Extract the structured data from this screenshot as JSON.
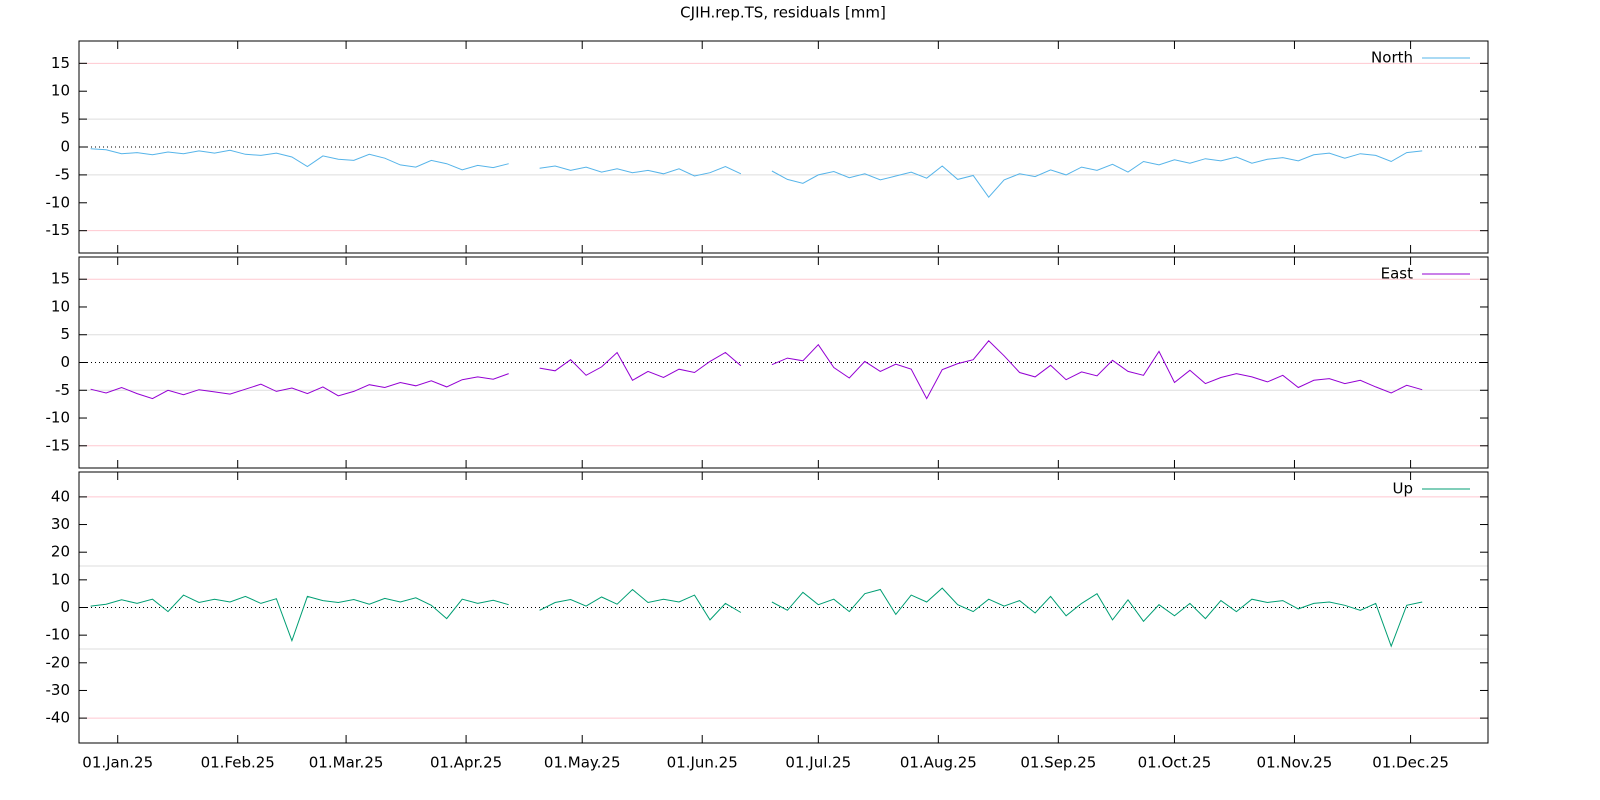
{
  "chart_data": {
    "type": "line",
    "title": "CJIH.rep.TS, residuals [mm]",
    "x": [
      "2024-12-25",
      "2024-12-29",
      "2025-01-02",
      "2025-01-06",
      "2025-01-10",
      "2025-01-14",
      "2025-01-18",
      "2025-01-22",
      "2025-01-26",
      "2025-01-30",
      "2025-02-03",
      "2025-02-07",
      "2025-02-11",
      "2025-02-15",
      "2025-02-19",
      "2025-02-23",
      "2025-02-27",
      "2025-03-03",
      "2025-03-07",
      "2025-03-11",
      "2025-03-15",
      "2025-03-19",
      "2025-03-23",
      "2025-03-27",
      "2025-03-31",
      "2025-04-04",
      "2025-04-08",
      "2025-04-12",
      "2025-04-16",
      "2025-04-20",
      "2025-04-24",
      "2025-04-28",
      "2025-05-02",
      "2025-05-06",
      "2025-05-10",
      "2025-05-14",
      "2025-05-18",
      "2025-05-22",
      "2025-05-26",
      "2025-05-30",
      "2025-06-03",
      "2025-06-07",
      "2025-06-11",
      "2025-06-15",
      "2025-06-19",
      "2025-06-23",
      "2025-06-27",
      "2025-07-01",
      "2025-07-05",
      "2025-07-09",
      "2025-07-13",
      "2025-07-17",
      "2025-07-21",
      "2025-07-25",
      "2025-07-29",
      "2025-08-02",
      "2025-08-06",
      "2025-08-10",
      "2025-08-14",
      "2025-08-18",
      "2025-08-22",
      "2025-08-26",
      "2025-08-30",
      "2025-09-03",
      "2025-09-07",
      "2025-09-11",
      "2025-09-15",
      "2025-09-19",
      "2025-09-23",
      "2025-09-27",
      "2025-10-01",
      "2025-10-05",
      "2025-10-09",
      "2025-10-13",
      "2025-10-17",
      "2025-10-21",
      "2025-10-25",
      "2025-10-29",
      "2025-11-02",
      "2025-11-06",
      "2025-11-10",
      "2025-11-14",
      "2025-11-18",
      "2025-11-22",
      "2025-11-26",
      "2025-11-30",
      "2025-12-04"
    ],
    "xlim": [
      "2024-12-22",
      "2025-12-21"
    ],
    "xticks": [
      {
        "value": "2025-01-01",
        "label": "01.Jan.25"
      },
      {
        "value": "2025-02-01",
        "label": "01.Feb.25"
      },
      {
        "value": "2025-03-01",
        "label": "01.Mar.25"
      },
      {
        "value": "2025-04-01",
        "label": "01.Apr.25"
      },
      {
        "value": "2025-05-01",
        "label": "01.May.25"
      },
      {
        "value": "2025-06-01",
        "label": "01.Jun.25"
      },
      {
        "value": "2025-07-01",
        "label": "01.Jul.25"
      },
      {
        "value": "2025-08-01",
        "label": "01.Aug.25"
      },
      {
        "value": "2025-09-01",
        "label": "01.Sep.25"
      },
      {
        "value": "2025-10-01",
        "label": "01.Oct.25"
      },
      {
        "value": "2025-11-01",
        "label": "01.Nov.25"
      },
      {
        "value": "2025-12-01",
        "label": "01.Dec.25"
      }
    ],
    "legend_position": "top-right",
    "panels": [
      {
        "ylim": [
          -19,
          19
        ],
        "yticks": [
          -15,
          -10,
          -5,
          0,
          5,
          10,
          15
        ],
        "ref_lines": [
          {
            "value": 15,
            "color": "#ffc8d0"
          },
          {
            "value": 5,
            "color": "#dddddd"
          },
          {
            "value": 0,
            "color": "#000000",
            "dash": "dotted"
          },
          {
            "value": -5,
            "color": "#dddddd"
          },
          {
            "value": -15,
            "color": "#ffc8d0"
          }
        ],
        "series": [
          {
            "name": "North",
            "color": "#56b4e9",
            "values": [
              -0.3,
              -0.5,
              -1.2,
              -1.0,
              -1.4,
              -0.9,
              -1.2,
              -0.7,
              -1.1,
              -0.6,
              -1.3,
              -1.5,
              -1.1,
              -1.8,
              -3.5,
              -1.6,
              -2.2,
              -2.4,
              -1.3,
              -2.0,
              -3.2,
              -3.6,
              -2.4,
              -3.0,
              -4.1,
              -3.3,
              -3.7,
              -3.0,
              null,
              -3.8,
              -3.4,
              -4.2,
              -3.6,
              -4.5,
              -3.9,
              -4.6,
              -4.2,
              -4.8,
              -3.9,
              -5.2,
              -4.6,
              -3.5,
              -4.8,
              null,
              -4.3,
              -5.8,
              -6.5,
              -5.0,
              -4.4,
              -5.5,
              -4.8,
              -5.9,
              -5.2,
              -4.5,
              -5.6,
              -3.4,
              -5.8,
              -5.1,
              -9.0,
              -5.9,
              -4.8,
              -5.3,
              -4.1,
              -5.0,
              -3.6,
              -4.2,
              -3.1,
              -4.5,
              -2.6,
              -3.2,
              -2.3,
              -2.9,
              -2.1,
              -2.5,
              -1.8,
              -2.9,
              -2.2,
              -1.9,
              -2.5,
              -1.4,
              -1.1,
              -2.0,
              -1.2,
              -1.5,
              -2.6,
              -1.0,
              -0.7
            ]
          }
        ]
      },
      {
        "ylim": [
          -19,
          19
        ],
        "yticks": [
          -15,
          -10,
          -5,
          0,
          5,
          10,
          15
        ],
        "ref_lines": [
          {
            "value": 15,
            "color": "#ffc8d0"
          },
          {
            "value": 5,
            "color": "#dddddd"
          },
          {
            "value": 0,
            "color": "#000000",
            "dash": "dotted"
          },
          {
            "value": -5,
            "color": "#dddddd"
          },
          {
            "value": -15,
            "color": "#ffc8d0"
          }
        ],
        "series": [
          {
            "name": "East",
            "color": "#9400d3",
            "values": [
              -4.8,
              -5.5,
              -4.5,
              -5.6,
              -6.5,
              -5.0,
              -5.8,
              -4.9,
              -5.3,
              -5.7,
              -4.8,
              -3.9,
              -5.2,
              -4.6,
              -5.6,
              -4.4,
              -6.0,
              -5.2,
              -4.0,
              -4.5,
              -3.6,
              -4.2,
              -3.3,
              -4.4,
              -3.1,
              -2.6,
              -3.0,
              -2.0,
              null,
              -1.0,
              -1.5,
              0.5,
              -2.3,
              -0.8,
              1.8,
              -3.2,
              -1.6,
              -2.7,
              -1.2,
              -1.8,
              0.2,
              1.8,
              -0.6,
              null,
              -0.4,
              0.8,
              0.3,
              3.2,
              -0.9,
              -2.8,
              0.2,
              -1.6,
              -0.3,
              -1.2,
              -6.5,
              -1.3,
              -0.2,
              0.5,
              3.9,
              1.2,
              -1.8,
              -2.6,
              -0.5,
              -3.1,
              -1.7,
              -2.4,
              0.4,
              -1.6,
              -2.3,
              2.0,
              -3.6,
              -1.4,
              -3.8,
              -2.7,
              -2.0,
              -2.6,
              -3.5,
              -2.3,
              -4.5,
              -3.2,
              -2.9,
              -3.8,
              -3.2,
              -4.4,
              -5.5,
              -4.1,
              -4.9
            ]
          }
        ]
      },
      {
        "ylim": [
          -49,
          49
        ],
        "yticks": [
          -40,
          -30,
          -20,
          -10,
          0,
          10,
          20,
          30,
          40
        ],
        "ref_lines": [
          {
            "value": 40,
            "color": "#ffc8d0"
          },
          {
            "value": 15,
            "color": "#dddddd"
          },
          {
            "value": 0,
            "color": "#000000",
            "dash": "dotted"
          },
          {
            "value": -15,
            "color": "#dddddd"
          },
          {
            "value": -40,
            "color": "#ffc8d0"
          }
        ],
        "series": [
          {
            "name": "Up",
            "color": "#009e73",
            "values": [
              0.5,
              1.2,
              2.8,
              1.5,
              3.0,
              -1.5,
              4.5,
              1.8,
              3.0,
              2.0,
              4.0,
              1.5,
              3.2,
              -12.0,
              4.0,
              2.5,
              1.8,
              2.9,
              1.2,
              3.3,
              2.0,
              3.5,
              0.8,
              -4.0,
              3.0,
              1.5,
              2.6,
              1.0,
              null,
              -1.0,
              1.8,
              2.9,
              0.5,
              3.8,
              1.2,
              6.5,
              1.8,
              3.0,
              2.0,
              4.5,
              -4.5,
              1.5,
              -1.8,
              null,
              2.0,
              -1.0,
              5.5,
              1.0,
              3.0,
              -1.5,
              5.0,
              6.5,
              -2.5,
              4.5,
              2.0,
              7.0,
              1.0,
              -1.5,
              3.0,
              0.5,
              2.5,
              -2.0,
              4.0,
              -3.0,
              1.5,
              5.0,
              -4.5,
              2.8,
              -5.0,
              1.0,
              -3.0,
              1.5,
              -4.0,
              2.5,
              -1.5,
              3.0,
              1.8,
              2.5,
              -0.5,
              1.5,
              2.0,
              0.8,
              -1.0,
              1.5,
              -14.0,
              0.8,
              2.0
            ]
          }
        ]
      }
    ]
  }
}
